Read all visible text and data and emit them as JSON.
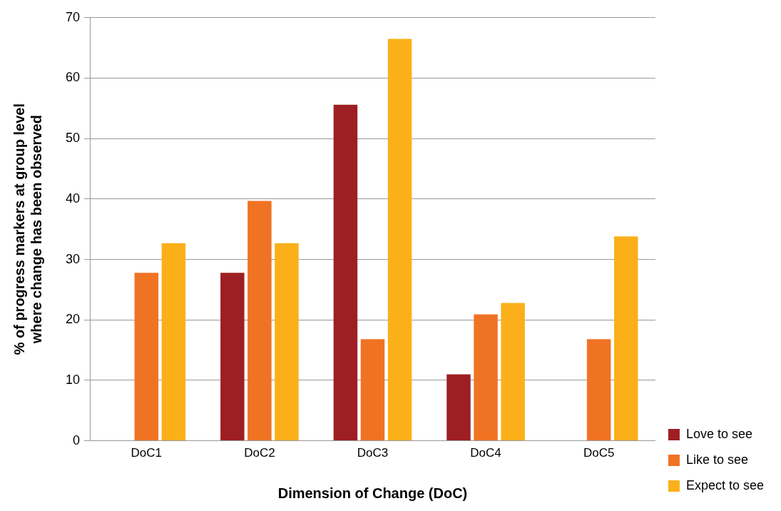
{
  "chart_data": {
    "type": "bar",
    "xlabel": "Dimension of Change (DoC)",
    "ylabel": "% of progress markers at group level\nwhere change has been observed",
    "categories": [
      "DoC1",
      "DoC2",
      "DoC3",
      "DoC4",
      "DoC5"
    ],
    "series": [
      {
        "name": "Love to see",
        "color": "#9e1f23",
        "values": [
          0,
          27.8,
          55.6,
          11,
          0
        ]
      },
      {
        "name": "Like to see",
        "color": "#f07324",
        "values": [
          27.8,
          39.7,
          16.8,
          20.9,
          16.8
        ]
      },
      {
        "name": "Expect to see",
        "color": "#fbb01a",
        "values": [
          32.7,
          32.7,
          66.5,
          22.8,
          33.8
        ]
      }
    ],
    "ylim": [
      0,
      70
    ],
    "yticks": [
      0,
      10,
      20,
      30,
      40,
      50,
      60,
      70
    ],
    "grid": "y",
    "legend": "bottom right"
  }
}
